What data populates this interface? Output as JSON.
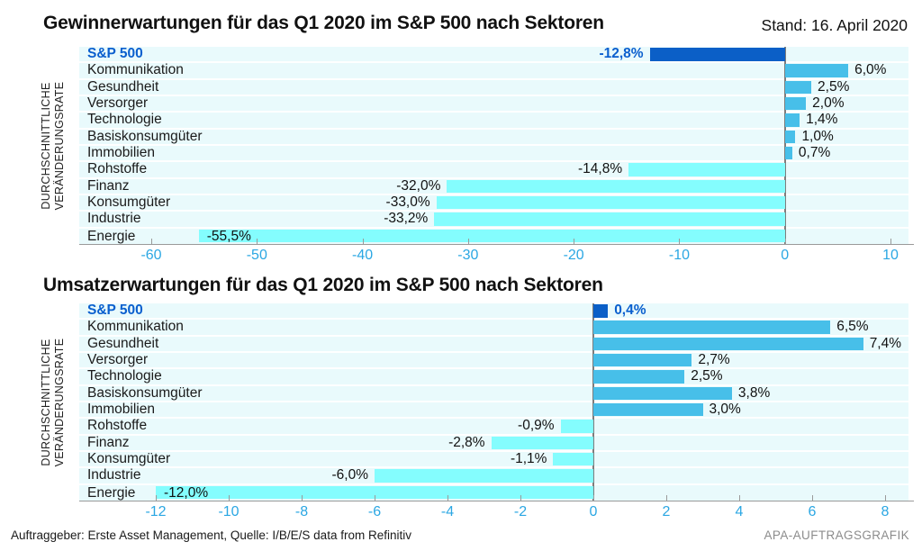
{
  "header": {
    "stand": "Stand: 16. April 2020"
  },
  "footer": {
    "source": "Auftraggeber: Erste Asset Management, Quelle: I/B/E/S data from Refinitiv",
    "credit": "APA-AUFTRAGSGRAFIK"
  },
  "colors": {
    "sp500_bar": "#0b5fc7",
    "sp500_text": "#0a5fce",
    "positive_bar": "#47bfe9",
    "negative_bar": "#84fdfe",
    "plot_background": "#e9fafc",
    "tick_label": "#2ba7e3",
    "axis_line": "#9a9a9a",
    "zero_line": "#7d7d7d"
  },
  "chart_data": [
    {
      "type": "bar",
      "orientation": "horizontal",
      "title": "Gewinnerwartungen für das Q1 2020 im S&P 500 nach Sektoren",
      "ylabel": [
        "DURCHSCHNITTLICHE",
        "VERÄNDERUNGSRATE"
      ],
      "xlim": [
        -60,
        10
      ],
      "grid": false,
      "legend": "none",
      "categories": [
        "S&P 500",
        "Kommunikation",
        "Gesundheit",
        "Versorger",
        "Technologie",
        "Basiskonsumgüter",
        "Immobilien",
        "Rohstoffe",
        "Finanz",
        "Konsumgüter",
        "Industrie",
        "Energie"
      ],
      "values": [
        -12.8,
        6.0,
        2.5,
        2.0,
        1.4,
        1.0,
        0.7,
        -14.8,
        -32.0,
        -33.0,
        -33.2,
        -55.5
      ],
      "value_labels": [
        "-12,8%",
        "6,0%",
        "2,5%",
        "2,0%",
        "1,4%",
        "1,0%",
        "0,7%",
        "-14,8%",
        "-32,0%",
        "-33,0%",
        "-33,2%",
        "-55,5%"
      ],
      "ticks": [
        -60,
        -50,
        -40,
        -30,
        -20,
        -10,
        0,
        10
      ],
      "tick_labels": [
        "-60",
        "-50",
        "-40",
        "-30",
        "-20",
        "-10",
        "0",
        "10"
      ],
      "highlight_index": 0,
      "inside_label_indexes": [
        11
      ]
    },
    {
      "type": "bar",
      "orientation": "horizontal",
      "title": "Umsatzerwartungen für das Q1 2020 im S&P 500 nach Sektoren",
      "ylabel": [
        "DURCHSCHNITTLICHE",
        "VERÄNDERUNGSRATE"
      ],
      "xlim": [
        -12,
        8
      ],
      "grid": false,
      "legend": "none",
      "categories": [
        "S&P 500",
        "Kommunikation",
        "Gesundheit",
        "Versorger",
        "Technologie",
        "Basiskonsumgüter",
        "Immobilien",
        "Rohstoffe",
        "Finanz",
        "Konsumgüter",
        "Industrie",
        "Energie"
      ],
      "values": [
        0.4,
        6.5,
        7.4,
        2.7,
        2.5,
        3.8,
        3.0,
        -0.9,
        -2.8,
        -1.1,
        -6.0,
        -12.0
      ],
      "value_labels": [
        "0,4%",
        "6,5%",
        "7,4%",
        "2,7%",
        "2,5%",
        "3,8%",
        "3,0%",
        "-0,9%",
        "-2,8%",
        "-1,1%",
        "-6,0%",
        "-12,0%"
      ],
      "ticks": [
        -12,
        -10,
        -8,
        -6,
        -4,
        -2,
        0,
        2,
        4,
        6,
        8
      ],
      "tick_labels": [
        "-12",
        "-10",
        "-8",
        "-6",
        "-4",
        "-2",
        "0",
        "2",
        "4",
        "6",
        "8"
      ],
      "highlight_index": 0,
      "inside_label_indexes": [
        11
      ]
    }
  ]
}
